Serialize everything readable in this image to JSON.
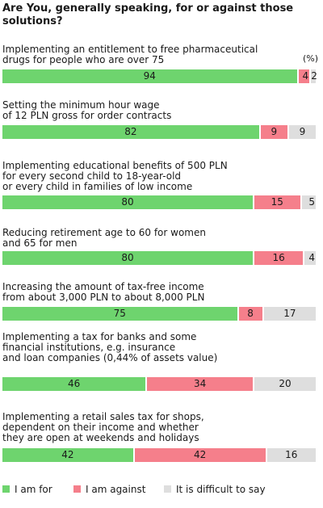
{
  "chart_data": {
    "type": "bar",
    "orientation": "horizontal-stacked-100",
    "title": "Are You, generally speaking, for or against those solutions?",
    "unit_label": "(%)",
    "series": [
      {
        "name": "I am for",
        "color": "#6ed46e"
      },
      {
        "name": "I am against",
        "color": "#f57f8b"
      },
      {
        "name": "It is difficult to say",
        "color": "#dedede"
      }
    ],
    "items": [
      {
        "label": "Implementing an entitlement to free pharmaceutical\ndrugs for people who are over 75",
        "values": [
          94,
          4,
          2
        ]
      },
      {
        "label": "Setting the minimum hour wage\nof 12 PLN gross for order contracts",
        "values": [
          82,
          9,
          9
        ]
      },
      {
        "label": "Implementing educational benefits of 500 PLN\nfor every second child to 18-year-old\nor every child in families of low income",
        "values": [
          80,
          15,
          5
        ]
      },
      {
        "label": "Reducing retirement age to 60 for women\nand 65 for men",
        "values": [
          80,
          16,
          4
        ]
      },
      {
        "label": "Increasing the amount of tax-free income\nfrom about 3,000 PLN to about 8,000 PLN",
        "values": [
          75,
          8,
          17
        ]
      },
      {
        "label": "Implementing a tax for banks and some\nfinancial institutions, e.g. insurance\nand loan companies (0,44% of assets value)",
        "values": [
          46,
          34,
          20
        ]
      },
      {
        "label": "Implementing a retail sales tax for shops,\ndependent on their income and whether\nthey are open at weekends and holidays",
        "values": [
          42,
          42,
          16
        ]
      }
    ],
    "xlim": [
      0,
      100
    ],
    "legend_position": "bottom-left",
    "grid": false
  }
}
